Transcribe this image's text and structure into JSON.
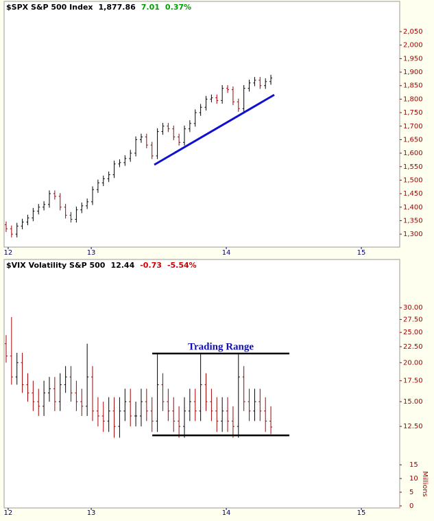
{
  "chart_data": [
    {
      "type": "ohlc",
      "header": {
        "title": "$SPX S&P 500 Index",
        "last": "1,877.86",
        "change": "7.01",
        "change_pct": "0.37%",
        "change_color": "#00a000"
      },
      "xlim": [
        12.355,
        15.284
      ],
      "xticks": [
        {
          "value": 12.385,
          "label": "12"
        },
        13,
        14,
        15
      ],
      "ylim": [
        1252,
        2162
      ],
      "yticks": [
        {
          "value": 1300,
          "label": "1,300"
        },
        {
          "value": 1350,
          "label": "1,350"
        },
        {
          "value": 1400,
          "label": "1,400"
        },
        {
          "value": 1450,
          "label": "1,450"
        },
        {
          "value": 1500,
          "label": "1,500"
        },
        {
          "value": 1550,
          "label": "1,550"
        },
        {
          "value": 1600,
          "label": "1,600"
        },
        {
          "value": 1650,
          "label": "1,650"
        },
        {
          "value": 1700,
          "label": "1,700"
        },
        {
          "value": 1750,
          "label": "1,750"
        },
        {
          "value": 1800,
          "label": "1,800"
        },
        {
          "value": 1850,
          "label": "1,850"
        },
        {
          "value": 1900,
          "label": "1,900"
        },
        {
          "value": 1950,
          "label": "1,950"
        },
        {
          "value": 2000,
          "label": "2,000"
        },
        {
          "value": 2050,
          "label": "2,050"
        }
      ],
      "log_scale": false,
      "up_color": "#000000",
      "down_color": "#a00000",
      "x": [
        12.37,
        12.41,
        12.45,
        12.49,
        12.53,
        12.57,
        12.61,
        12.65,
        12.69,
        12.73,
        12.77,
        12.81,
        12.85,
        12.89,
        12.93,
        12.97,
        13.01,
        13.05,
        13.09,
        13.13,
        13.17,
        13.21,
        13.25,
        13.29,
        13.33,
        13.37,
        13.41,
        13.45,
        13.49,
        13.53,
        13.57,
        13.61,
        13.65,
        13.69,
        13.73,
        13.77,
        13.81,
        13.85,
        13.89,
        13.93,
        13.97,
        14.01,
        14.05,
        14.09,
        14.13,
        14.17,
        14.21,
        14.25,
        14.29,
        14.33
      ],
      "open": [
        1335,
        1320,
        1300,
        1330,
        1345,
        1360,
        1385,
        1400,
        1410,
        1450,
        1440,
        1400,
        1370,
        1355,
        1390,
        1405,
        1420,
        1465,
        1490,
        1505,
        1520,
        1560,
        1565,
        1580,
        1600,
        1650,
        1660,
        1630,
        1590,
        1680,
        1700,
        1690,
        1660,
        1640,
        1690,
        1710,
        1750,
        1770,
        1800,
        1805,
        1795,
        1840,
        1835,
        1790,
        1765,
        1840,
        1860,
        1870,
        1850,
        1865
      ],
      "high": [
        1347,
        1332,
        1342,
        1357,
        1372,
        1397,
        1412,
        1422,
        1462,
        1462,
        1452,
        1412,
        1382,
        1402,
        1417,
        1432,
        1477,
        1502,
        1517,
        1532,
        1572,
        1577,
        1592,
        1612,
        1662,
        1672,
        1672,
        1642,
        1692,
        1712,
        1712,
        1702,
        1672,
        1702,
        1722,
        1762,
        1782,
        1812,
        1817,
        1817,
        1852,
        1852,
        1847,
        1802,
        1852,
        1872,
        1882,
        1882,
        1877,
        1890
      ],
      "low": [
        1308,
        1288,
        1288,
        1318,
        1333,
        1348,
        1373,
        1388,
        1398,
        1428,
        1388,
        1358,
        1343,
        1343,
        1378,
        1393,
        1408,
        1453,
        1478,
        1493,
        1508,
        1548,
        1553,
        1568,
        1588,
        1638,
        1618,
        1578,
        1578,
        1668,
        1678,
        1648,
        1628,
        1628,
        1678,
        1698,
        1738,
        1758,
        1788,
        1783,
        1783,
        1823,
        1778,
        1753,
        1753,
        1828,
        1848,
        1838,
        1838,
        1853
      ],
      "close": [
        1320,
        1300,
        1330,
        1345,
        1360,
        1385,
        1400,
        1410,
        1450,
        1440,
        1400,
        1370,
        1355,
        1390,
        1405,
        1420,
        1465,
        1490,
        1505,
        1520,
        1560,
        1565,
        1580,
        1600,
        1650,
        1660,
        1630,
        1590,
        1680,
        1700,
        1690,
        1660,
        1640,
        1690,
        1710,
        1750,
        1770,
        1800,
        1805,
        1795,
        1840,
        1835,
        1790,
        1765,
        1840,
        1860,
        1870,
        1850,
        1865,
        1878
      ],
      "trendline": {
        "x": [
          13.467,
          14.355
        ],
        "y": [
          1557,
          1816
        ],
        "color": "#1010d0"
      }
    },
    {
      "type": "ohlc",
      "header": {
        "title": "$VIX Volatility S&P 500",
        "last": "12.44",
        "change": "-0.73",
        "change_pct": "-5.54%",
        "change_color": "#d00000"
      },
      "xlim": [
        12.355,
        15.284
      ],
      "xticks": [
        {
          "value": 12.385,
          "label": "12"
        },
        13,
        14,
        15
      ],
      "ylim": [
        6.85,
        42.8
      ],
      "yticks": [
        {
          "value": 12.5,
          "label": "12.50"
        },
        {
          "value": 15,
          "label": "15.00"
        },
        {
          "value": 17.5,
          "label": "17.50"
        },
        {
          "value": 20,
          "label": "20.00"
        },
        {
          "value": 22.5,
          "label": "22.50"
        },
        {
          "value": 25,
          "label": "25.00"
        },
        {
          "value": 27.5,
          "label": "27.50"
        },
        {
          "value": 30,
          "label": "30.00"
        }
      ],
      "log_scale": true,
      "y2lim": [
        0,
        90
      ],
      "y2ticks": [
        0,
        5,
        10,
        15
      ],
      "y2label": "Millions",
      "up_color": "#000000",
      "down_color": "#a00000",
      "x": [
        12.37,
        12.41,
        12.45,
        12.49,
        12.53,
        12.57,
        12.61,
        12.65,
        12.69,
        12.73,
        12.77,
        12.81,
        12.85,
        12.89,
        12.93,
        12.97,
        13.01,
        13.05,
        13.09,
        13.13,
        13.17,
        13.21,
        13.25,
        13.29,
        13.33,
        13.37,
        13.41,
        13.45,
        13.49,
        13.53,
        13.57,
        13.61,
        13.65,
        13.69,
        13.73,
        13.77,
        13.81,
        13.85,
        13.89,
        13.93,
        13.97,
        14.01,
        14.05,
        14.09,
        14.13,
        14.17,
        14.21,
        14.25,
        14.29,
        14.33
      ],
      "open": [
        23,
        21,
        18,
        20,
        17,
        16,
        15,
        14.5,
        16,
        16.5,
        15,
        17,
        18,
        16,
        15,
        14.5,
        18,
        14,
        13.5,
        13,
        14,
        12.5,
        14,
        15,
        13.5,
        13.5,
        15,
        14,
        13,
        17,
        15,
        14,
        13,
        12.5,
        14,
        15,
        14,
        17,
        15,
        14,
        13,
        14,
        13,
        12.5,
        18,
        15,
        14,
        15,
        14,
        13
      ],
      "high": [
        24.5,
        28,
        21.5,
        21.5,
        18.5,
        17.5,
        16.5,
        17.5,
        18,
        18,
        18.5,
        19.5,
        19.5,
        17.5,
        16.5,
        23,
        19.5,
        15.5,
        15,
        15.5,
        15.5,
        15.5,
        16.5,
        16.5,
        15,
        16.5,
        16.5,
        15.5,
        21.5,
        18.5,
        16.5,
        15.5,
        14.5,
        15.5,
        16.5,
        16.5,
        21.5,
        18.5,
        16.5,
        15.5,
        15.5,
        15.5,
        14.5,
        21.5,
        19.5,
        16.5,
        16.5,
        16.5,
        15.5,
        14.5
      ],
      "low": [
        20,
        17,
        17,
        16,
        15,
        14,
        13.5,
        13.5,
        15,
        14,
        14,
        16,
        15,
        14,
        13.5,
        13.5,
        13,
        12.5,
        12,
        12,
        11.5,
        11.5,
        13,
        12.5,
        12.5,
        12.5,
        13,
        12,
        12,
        14,
        13,
        12,
        11.5,
        11.5,
        13,
        13,
        13,
        14,
        13,
        12,
        12,
        12,
        11.5,
        11.5,
        14,
        13,
        13,
        13,
        12,
        11.8
      ],
      "close": [
        21,
        18,
        20,
        17,
        16,
        15,
        14.5,
        16,
        16.5,
        15,
        17,
        18,
        16,
        15,
        14.5,
        18,
        14,
        13.5,
        13,
        14,
        12.5,
        14,
        15,
        13.5,
        13.5,
        15,
        14,
        13,
        17,
        15,
        14,
        13,
        12.5,
        14,
        15,
        14,
        17,
        15,
        14,
        13,
        14,
        13,
        12.5,
        18,
        15,
        14,
        15,
        14,
        13,
        12.44
      ],
      "range_lines": [
        {
          "x": [
            13.452,
            14.467
          ],
          "y": [
            21.4,
            21.4
          ]
        },
        {
          "x": [
            13.452,
            14.467
          ],
          "y": [
            11.7,
            11.7
          ]
        }
      ],
      "annotation": "Trading Range"
    }
  ]
}
